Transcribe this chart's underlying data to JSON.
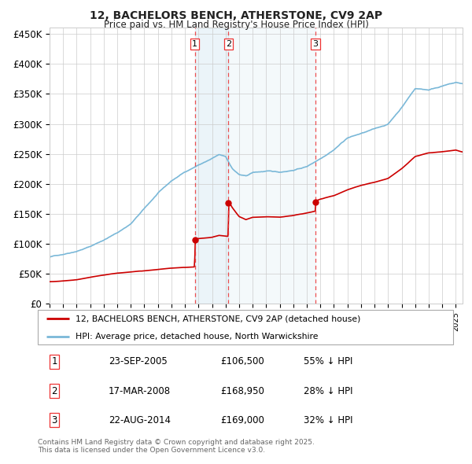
{
  "title": "12, BACHELORS BENCH, ATHERSTONE, CV9 2AP",
  "subtitle": "Price paid vs. HM Land Registry's House Price Index (HPI)",
  "ytick_labels": [
    "£0",
    "£50K",
    "£100K",
    "£150K",
    "£200K",
    "£250K",
    "£300K",
    "£350K",
    "£400K",
    "£450K"
  ],
  "yticks": [
    0,
    50000,
    100000,
    150000,
    200000,
    250000,
    300000,
    350000,
    400000,
    450000
  ],
  "xlim_start": 1995.0,
  "xlim_end": 2025.5,
  "ylim_top": 460000,
  "transaction_dates": [
    2005.73,
    2008.21,
    2014.64
  ],
  "transaction_prices": [
    106500,
    168950,
    169000
  ],
  "transaction_labels": [
    "1",
    "2",
    "3"
  ],
  "vline_color": "#ee3333",
  "hpi_color": "#7ab8d8",
  "hpi_fill_color": "#c8dff0",
  "price_color": "#cc0000",
  "legend_entry1": "12, BACHELORS BENCH, ATHERSTONE, CV9 2AP (detached house)",
  "legend_entry2": "HPI: Average price, detached house, North Warwickshire",
  "table_rows": [
    [
      "1",
      "23-SEP-2005",
      "£106,500",
      "55% ↓ HPI"
    ],
    [
      "2",
      "17-MAR-2008",
      "£168,950",
      "28% ↓ HPI"
    ],
    [
      "3",
      "22-AUG-2014",
      "£169,000",
      "32% ↓ HPI"
    ]
  ],
  "footnote": "Contains HM Land Registry data © Crown copyright and database right 2025.\nThis data is licensed under the Open Government Licence v3.0.",
  "background_color": "#ffffff",
  "grid_color": "#cccccc",
  "hpi_seed_values": [
    [
      1995.0,
      78000
    ],
    [
      1996.0,
      83000
    ],
    [
      1997.0,
      89000
    ],
    [
      1998.0,
      97000
    ],
    [
      1999.0,
      108000
    ],
    [
      2000.0,
      120000
    ],
    [
      2001.0,
      135000
    ],
    [
      2002.0,
      160000
    ],
    [
      2003.0,
      185000
    ],
    [
      2004.0,
      205000
    ],
    [
      2005.0,
      220000
    ],
    [
      2006.0,
      232000
    ],
    [
      2007.0,
      242000
    ],
    [
      2007.5,
      248000
    ],
    [
      2008.0,
      245000
    ],
    [
      2008.5,
      225000
    ],
    [
      2009.0,
      215000
    ],
    [
      2009.5,
      212000
    ],
    [
      2010.0,
      218000
    ],
    [
      2011.0,
      220000
    ],
    [
      2012.0,
      218000
    ],
    [
      2013.0,
      222000
    ],
    [
      2014.0,
      228000
    ],
    [
      2015.0,
      242000
    ],
    [
      2016.0,
      258000
    ],
    [
      2017.0,
      278000
    ],
    [
      2018.0,
      285000
    ],
    [
      2019.0,
      292000
    ],
    [
      2020.0,
      300000
    ],
    [
      2021.0,
      328000
    ],
    [
      2022.0,
      360000
    ],
    [
      2023.0,
      358000
    ],
    [
      2024.0,
      365000
    ],
    [
      2025.0,
      370000
    ],
    [
      2025.5,
      368000
    ]
  ],
  "price_seed_values": [
    [
      1995.0,
      37000
    ],
    [
      1996.0,
      38000
    ],
    [
      1997.0,
      40000
    ],
    [
      1998.0,
      44000
    ],
    [
      1999.0,
      47000
    ],
    [
      2000.0,
      50000
    ],
    [
      2001.0,
      52000
    ],
    [
      2002.0,
      54000
    ],
    [
      2003.0,
      56000
    ],
    [
      2004.0,
      58000
    ],
    [
      2005.0,
      59000
    ],
    [
      2005.72,
      60000
    ],
    [
      2005.74,
      106500
    ],
    [
      2006.0,
      107000
    ],
    [
      2007.0,
      109000
    ],
    [
      2007.5,
      112000
    ],
    [
      2008.2,
      110000
    ],
    [
      2008.22,
      168950
    ],
    [
      2008.5,
      158000
    ],
    [
      2009.0,
      143000
    ],
    [
      2009.5,
      138000
    ],
    [
      2010.0,
      142000
    ],
    [
      2011.0,
      143000
    ],
    [
      2012.0,
      142000
    ],
    [
      2013.0,
      145000
    ],
    [
      2014.0,
      149000
    ],
    [
      2014.63,
      152000
    ],
    [
      2014.65,
      169000
    ],
    [
      2015.0,
      172000
    ],
    [
      2016.0,
      178000
    ],
    [
      2017.0,
      188000
    ],
    [
      2018.0,
      195000
    ],
    [
      2019.0,
      200000
    ],
    [
      2020.0,
      206000
    ],
    [
      2021.0,
      222000
    ],
    [
      2022.0,
      242000
    ],
    [
      2023.0,
      248000
    ],
    [
      2024.0,
      250000
    ],
    [
      2025.0,
      253000
    ],
    [
      2025.5,
      250000
    ]
  ]
}
